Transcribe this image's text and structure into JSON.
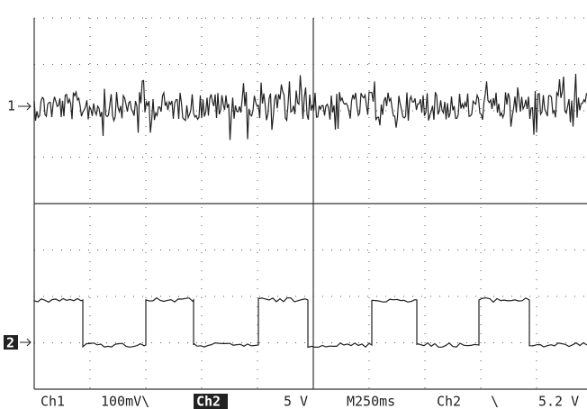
{
  "markers": {
    "ch1": "1",
    "ch2": "2"
  },
  "status": {
    "ch1": "Ch1",
    "ch1_scale": "100mV\\",
    "ch2": "Ch2",
    "ch2_scale": "5 V",
    "timebase": "M250ms",
    "trigger_source": "Ch2",
    "trigger_slope": "\\",
    "trigger_level": "5.2 V"
  }
}
